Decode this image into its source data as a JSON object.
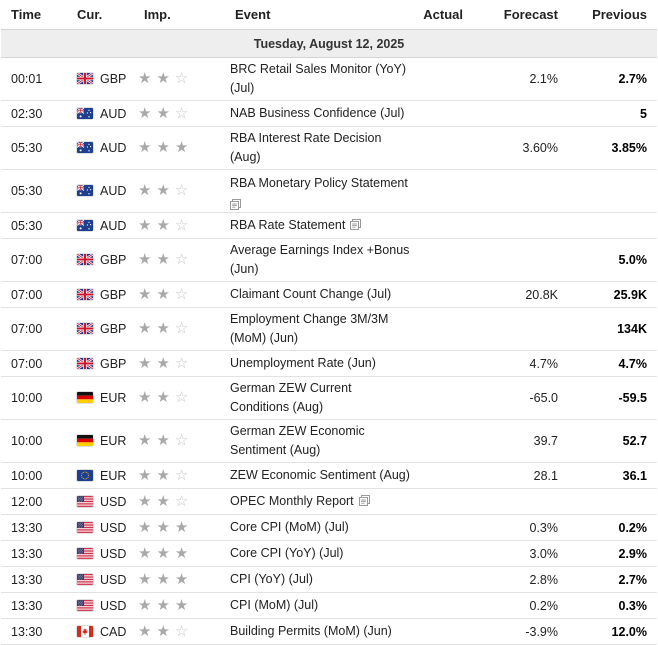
{
  "header": {
    "time": "Time",
    "currency": "Cur.",
    "importance": "Imp.",
    "event": "Event",
    "actual": "Actual",
    "forecast": "Forecast",
    "previous": "Previous"
  },
  "date_label": "Tuesday, August 12, 2025",
  "colors": {
    "star_filled": "#a9a9a9",
    "star_empty": "#c4c4c4",
    "row_border": "#e2e2e2",
    "date_bg": "#eeeeee"
  },
  "events": [
    {
      "time": "00:01",
      "currency": "GBP",
      "flag": "uk-flag-icon",
      "stars": 2,
      "event": "BRC Retail Sales Monitor (YoY) (Jul)",
      "doc_icon": false,
      "actual": "",
      "forecast": "2.1%",
      "previous": "2.7%"
    },
    {
      "time": "02:30",
      "currency": "AUD",
      "flag": "australia-flag-icon",
      "stars": 2,
      "event": "NAB Business Confidence (Jul)",
      "doc_icon": false,
      "actual": "",
      "forecast": "",
      "previous": "5"
    },
    {
      "time": "05:30",
      "currency": "AUD",
      "flag": "australia-flag-icon",
      "stars": 3,
      "event": "RBA Interest Rate Decision (Aug)",
      "doc_icon": false,
      "actual": "",
      "forecast": "3.60%",
      "previous": "3.85%"
    },
    {
      "time": "05:30",
      "currency": "AUD",
      "flag": "australia-flag-icon",
      "stars": 2,
      "event": "RBA Monetary Policy Statement",
      "doc_icon": true,
      "actual": "",
      "forecast": "",
      "previous": ""
    },
    {
      "time": "05:30",
      "currency": "AUD",
      "flag": "australia-flag-icon",
      "stars": 2,
      "event": "RBA Rate Statement",
      "doc_icon": true,
      "actual": "",
      "forecast": "",
      "previous": ""
    },
    {
      "time": "07:00",
      "currency": "GBP",
      "flag": "uk-flag-icon",
      "stars": 2,
      "event": "Average Earnings Index +Bonus (Jun)",
      "doc_icon": false,
      "actual": "",
      "forecast": "",
      "previous": "5.0%"
    },
    {
      "time": "07:00",
      "currency": "GBP",
      "flag": "uk-flag-icon",
      "stars": 2,
      "event": "Claimant Count Change (Jul)",
      "doc_icon": false,
      "actual": "",
      "forecast": "20.8K",
      "previous": "25.9K"
    },
    {
      "time": "07:00",
      "currency": "GBP",
      "flag": "uk-flag-icon",
      "stars": 2,
      "event": "Employment Change 3M/3M (MoM) (Jun)",
      "doc_icon": false,
      "actual": "",
      "forecast": "",
      "previous": "134K"
    },
    {
      "time": "07:00",
      "currency": "GBP",
      "flag": "uk-flag-icon",
      "stars": 2,
      "event": "Unemployment Rate (Jun)",
      "doc_icon": false,
      "actual": "",
      "forecast": "4.7%",
      "previous": "4.7%"
    },
    {
      "time": "10:00",
      "currency": "EUR",
      "flag": "germany-flag-icon",
      "stars": 2,
      "event": "German ZEW Current Conditions (Aug)",
      "doc_icon": false,
      "actual": "",
      "forecast": "-65.0",
      "previous": "-59.5"
    },
    {
      "time": "10:00",
      "currency": "EUR",
      "flag": "germany-flag-icon",
      "stars": 2,
      "event": "German ZEW Economic Sentiment (Aug)",
      "doc_icon": false,
      "actual": "",
      "forecast": "39.7",
      "previous": "52.7"
    },
    {
      "time": "10:00",
      "currency": "EUR",
      "flag": "eu-flag-icon",
      "stars": 2,
      "event": "ZEW Economic Sentiment (Aug)",
      "doc_icon": false,
      "actual": "",
      "forecast": "28.1",
      "previous": "36.1"
    },
    {
      "time": "12:00",
      "currency": "USD",
      "flag": "usa-flag-icon",
      "stars": 2,
      "event": "OPEC Monthly Report",
      "doc_icon": true,
      "actual": "",
      "forecast": "",
      "previous": ""
    },
    {
      "time": "13:30",
      "currency": "USD",
      "flag": "usa-flag-icon",
      "stars": 3,
      "event": "Core CPI (MoM) (Jul)",
      "doc_icon": false,
      "actual": "",
      "forecast": "0.3%",
      "previous": "0.2%"
    },
    {
      "time": "13:30",
      "currency": "USD",
      "flag": "usa-flag-icon",
      "stars": 3,
      "event": "Core CPI (YoY) (Jul)",
      "doc_icon": false,
      "actual": "",
      "forecast": "3.0%",
      "previous": "2.9%"
    },
    {
      "time": "13:30",
      "currency": "USD",
      "flag": "usa-flag-icon",
      "stars": 3,
      "event": "CPI (YoY) (Jul)",
      "doc_icon": false,
      "actual": "",
      "forecast": "2.8%",
      "previous": "2.7%"
    },
    {
      "time": "13:30",
      "currency": "USD",
      "flag": "usa-flag-icon",
      "stars": 3,
      "event": "CPI (MoM) (Jul)",
      "doc_icon": false,
      "actual": "",
      "forecast": "0.2%",
      "previous": "0.3%"
    },
    {
      "time": "13:30",
      "currency": "CAD",
      "flag": "canada-flag-icon",
      "stars": 2,
      "event": "Building Permits (MoM) (Jun)",
      "doc_icon": false,
      "actual": "",
      "forecast": "-3.9%",
      "previous": "12.0%"
    }
  ]
}
